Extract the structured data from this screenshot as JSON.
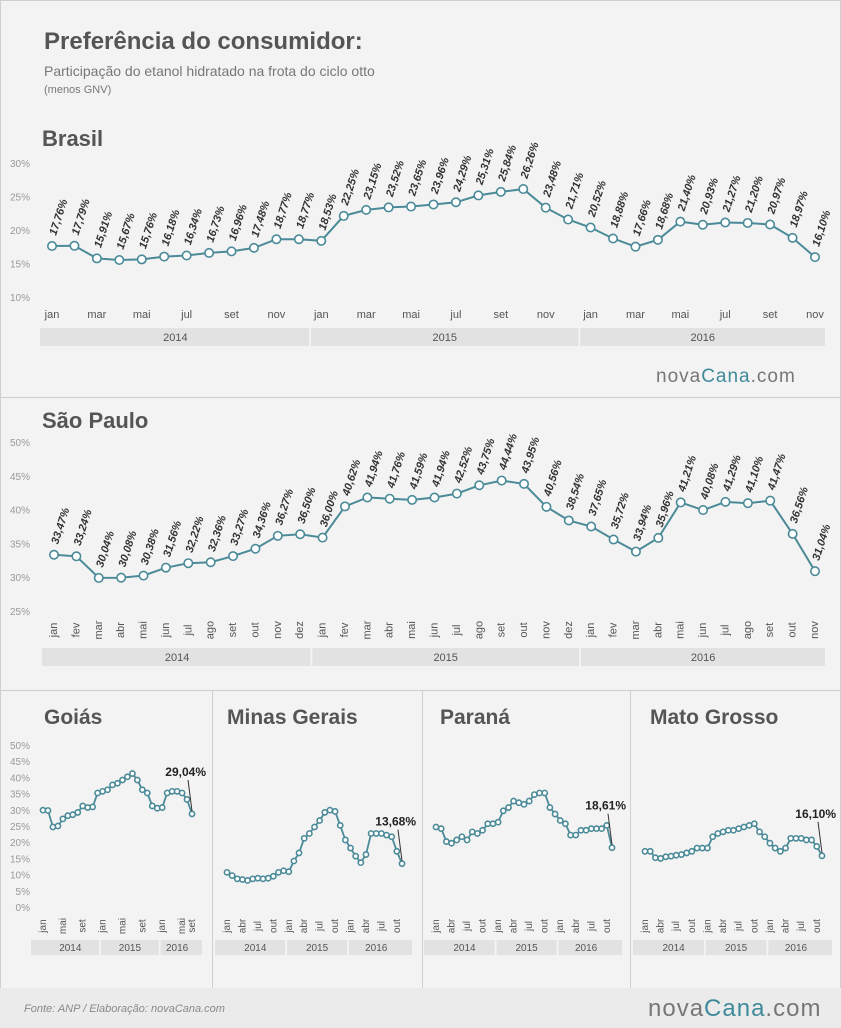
{
  "header": {
    "title": "Preferência do consumidor:",
    "subtitle": "Participação do etanol hidratado na frota do ciclo otto",
    "note": "(menos GNV)"
  },
  "footer": {
    "source": "Fonte: ANP  / Elaboração: novaCana.com",
    "logo_part1": "nova",
    "logo_part2": "Cana",
    "logo_part3": ".com"
  },
  "colors": {
    "line": "#4b8a98",
    "marker_fill": "#ffffff",
    "band": "#e2e2e2"
  },
  "chart_data": [
    {
      "id": "brasil",
      "type": "line",
      "title": "Brasil",
      "yticks": [
        "30%",
        "25%",
        "20%",
        "15%",
        "10%"
      ],
      "ylim": [
        10,
        30
      ],
      "x_tick_labels": [
        "jan",
        "mar",
        "mai",
        "jul",
        "set",
        "nov",
        "jan",
        "mar",
        "mai",
        "jul",
        "set",
        "nov",
        "jan",
        "mar",
        "mai",
        "jul",
        "set",
        "nov"
      ],
      "years": [
        "2014",
        "2015",
        "2016"
      ],
      "values": [
        17.76,
        17.79,
        15.91,
        15.67,
        15.76,
        16.18,
        16.34,
        16.73,
        16.96,
        17.48,
        18.77,
        18.77,
        18.53,
        22.25,
        23.15,
        23.52,
        23.65,
        23.96,
        24.29,
        25.31,
        25.84,
        26.26,
        23.48,
        21.71,
        20.52,
        18.88,
        17.66,
        18.68,
        21.4,
        20.93,
        21.27,
        21.2,
        20.97,
        18.97,
        16.1
      ],
      "data_labels": [
        "17,76%",
        "17,79%",
        "15,91%",
        "15,67%",
        "15,76%",
        "16,18%",
        "16,34%",
        "16,73%",
        "16,96%",
        "17,48%",
        "18,77%",
        "18,77%",
        "18,53%",
        "22,25%",
        "23,15%",
        "23,52%",
        "23,65%",
        "23,96%",
        "24,29%",
        "25,31%",
        "25,84%",
        "26,26%",
        "23,48%",
        "21,71%",
        "20,52%",
        "18,88%",
        "17,66%",
        "18,68%",
        "21,40%",
        "20,93%",
        "21,27%",
        "21,20%",
        "20,97%",
        "18,97%",
        "16,10%"
      ]
    },
    {
      "id": "sao_paulo",
      "type": "line",
      "title": "São Paulo",
      "yticks": [
        "50%",
        "45%",
        "40%",
        "35%",
        "30%",
        "25%"
      ],
      "ylim": [
        25,
        50
      ],
      "x_tick_labels": [
        "jan",
        "fev",
        "mar",
        "abr",
        "mai",
        "jun",
        "jul",
        "ago",
        "set",
        "out",
        "nov",
        "dez",
        "jan",
        "fev",
        "mar",
        "abr",
        "mai",
        "jun",
        "jul",
        "ago",
        "set",
        "out",
        "nov",
        "dez",
        "jan",
        "fev",
        "mar",
        "abr",
        "mai",
        "jun",
        "jul",
        "ago",
        "set",
        "out",
        "nov"
      ],
      "years": [
        "2014",
        "2015",
        "2016"
      ],
      "values": [
        33.47,
        33.24,
        30.04,
        30.08,
        30.38,
        31.56,
        32.22,
        32.36,
        33.27,
        34.36,
        36.27,
        36.5,
        36.0,
        40.62,
        41.94,
        41.76,
        41.59,
        41.94,
        42.52,
        43.75,
        44.44,
        43.95,
        40.56,
        38.54,
        37.65,
        35.72,
        33.94,
        35.96,
        41.21,
        40.08,
        41.29,
        41.1,
        41.47,
        36.56,
        31.04
      ],
      "data_labels": [
        "33,47%",
        "33,24%",
        "30,04%",
        "30,08%",
        "30,38%",
        "31,56%",
        "32,22%",
        "32,36%",
        "33,27%",
        "34,36%",
        "36,27%",
        "36,50%",
        "36,00%",
        "40,62%",
        "41,94%",
        "41,76%",
        "41,59%",
        "41,94%",
        "42,52%",
        "43,75%",
        "44,44%",
        "43,95%",
        "40,56%",
        "38,54%",
        "37,65%",
        "35,72%",
        "33,94%",
        "35,96%",
        "41,21%",
        "40,08%",
        "41,29%",
        "41,10%",
        "41,47%",
        "36,56%",
        "31,04%"
      ]
    },
    {
      "id": "goias",
      "type": "line",
      "title": "Goiás",
      "yticks": [
        "50%",
        "45%",
        "40%",
        "35%",
        "30%",
        "25%",
        "20%",
        "15%",
        "10%",
        "5%",
        "0%"
      ],
      "ylim": [
        0,
        50
      ],
      "x_tick_labels": [
        "jan",
        "mai",
        "set",
        "jan",
        "mai",
        "set",
        "jan",
        "mai",
        "set"
      ],
      "years": [
        "2014",
        "2015",
        "2016"
      ],
      "values": [
        30.2,
        30.1,
        25.0,
        25.3,
        27.5,
        28.5,
        28.8,
        29.5,
        31.5,
        31.0,
        31.2,
        35.5,
        36.0,
        36.5,
        38.0,
        38.5,
        39.5,
        40.5,
        41.5,
        39.5,
        36.5,
        35.5,
        31.5,
        30.8,
        31.0,
        35.5,
        36.0,
        36.0,
        35.5,
        33.5,
        29.04
      ],
      "last_label": "29,04%"
    },
    {
      "id": "minas_gerais",
      "type": "line",
      "title": "Minas Gerais",
      "yticks": [],
      "ylim": [
        0,
        50
      ],
      "x_tick_labels": [
        "jan",
        "abr",
        "jul",
        "out",
        "jan",
        "abr",
        "jul",
        "out",
        "jan",
        "abr",
        "jul",
        "out"
      ],
      "years": [
        "2014",
        "2015",
        "2016"
      ],
      "values": [
        11.0,
        10.0,
        9.0,
        8.8,
        8.5,
        9.0,
        9.2,
        9.0,
        9.2,
        9.8,
        11.0,
        11.5,
        11.2,
        14.5,
        17.0,
        21.5,
        23.0,
        25.0,
        27.0,
        29.5,
        30.2,
        29.8,
        25.5,
        21.0,
        18.5,
        16.0,
        14.0,
        16.5,
        23.0,
        23.0,
        23.0,
        22.5,
        22.0,
        17.5,
        13.68
      ],
      "last_label": "13,68%"
    },
    {
      "id": "parana",
      "type": "line",
      "title": "Paraná",
      "yticks": [],
      "ylim": [
        0,
        50
      ],
      "x_tick_labels": [
        "jan",
        "abr",
        "jul",
        "out",
        "jan",
        "abr",
        "jul",
        "out",
        "jan",
        "abr",
        "jul",
        "out"
      ],
      "years": [
        "2014",
        "2015",
        "2016"
      ],
      "values": [
        25.0,
        24.5,
        20.5,
        20.0,
        21.0,
        22.0,
        21.0,
        23.5,
        23.0,
        24.0,
        26.0,
        26.0,
        26.5,
        30.0,
        31.0,
        33.0,
        32.5,
        32.0,
        33.0,
        35.0,
        35.5,
        35.5,
        31.0,
        29.0,
        27.0,
        26.0,
        22.5,
        22.5,
        24.0,
        24.0,
        24.5,
        24.5,
        24.5,
        25.5,
        18.61
      ],
      "last_label": "18,61%"
    },
    {
      "id": "mato_grosso",
      "type": "line",
      "title": "Mato Grosso",
      "yticks": [],
      "ylim": [
        0,
        50
      ],
      "x_tick_labels": [
        "jan",
        "abr",
        "jul",
        "out",
        "jan",
        "abr",
        "jul",
        "out",
        "jan",
        "abr",
        "jul",
        "out"
      ],
      "years": [
        "2014",
        "2015",
        "2016"
      ],
      "values": [
        17.5,
        17.5,
        15.5,
        15.3,
        15.8,
        16.0,
        16.3,
        16.5,
        17.0,
        17.5,
        18.5,
        18.5,
        18.5,
        22.0,
        23.0,
        23.5,
        24.0,
        24.0,
        24.5,
        25.0,
        25.5,
        26.0,
        23.5,
        22.0,
        20.0,
        18.5,
        17.5,
        18.5,
        21.5,
        21.5,
        21.5,
        21.0,
        21.0,
        19.0,
        16.1
      ],
      "last_label": "16,10%"
    }
  ]
}
